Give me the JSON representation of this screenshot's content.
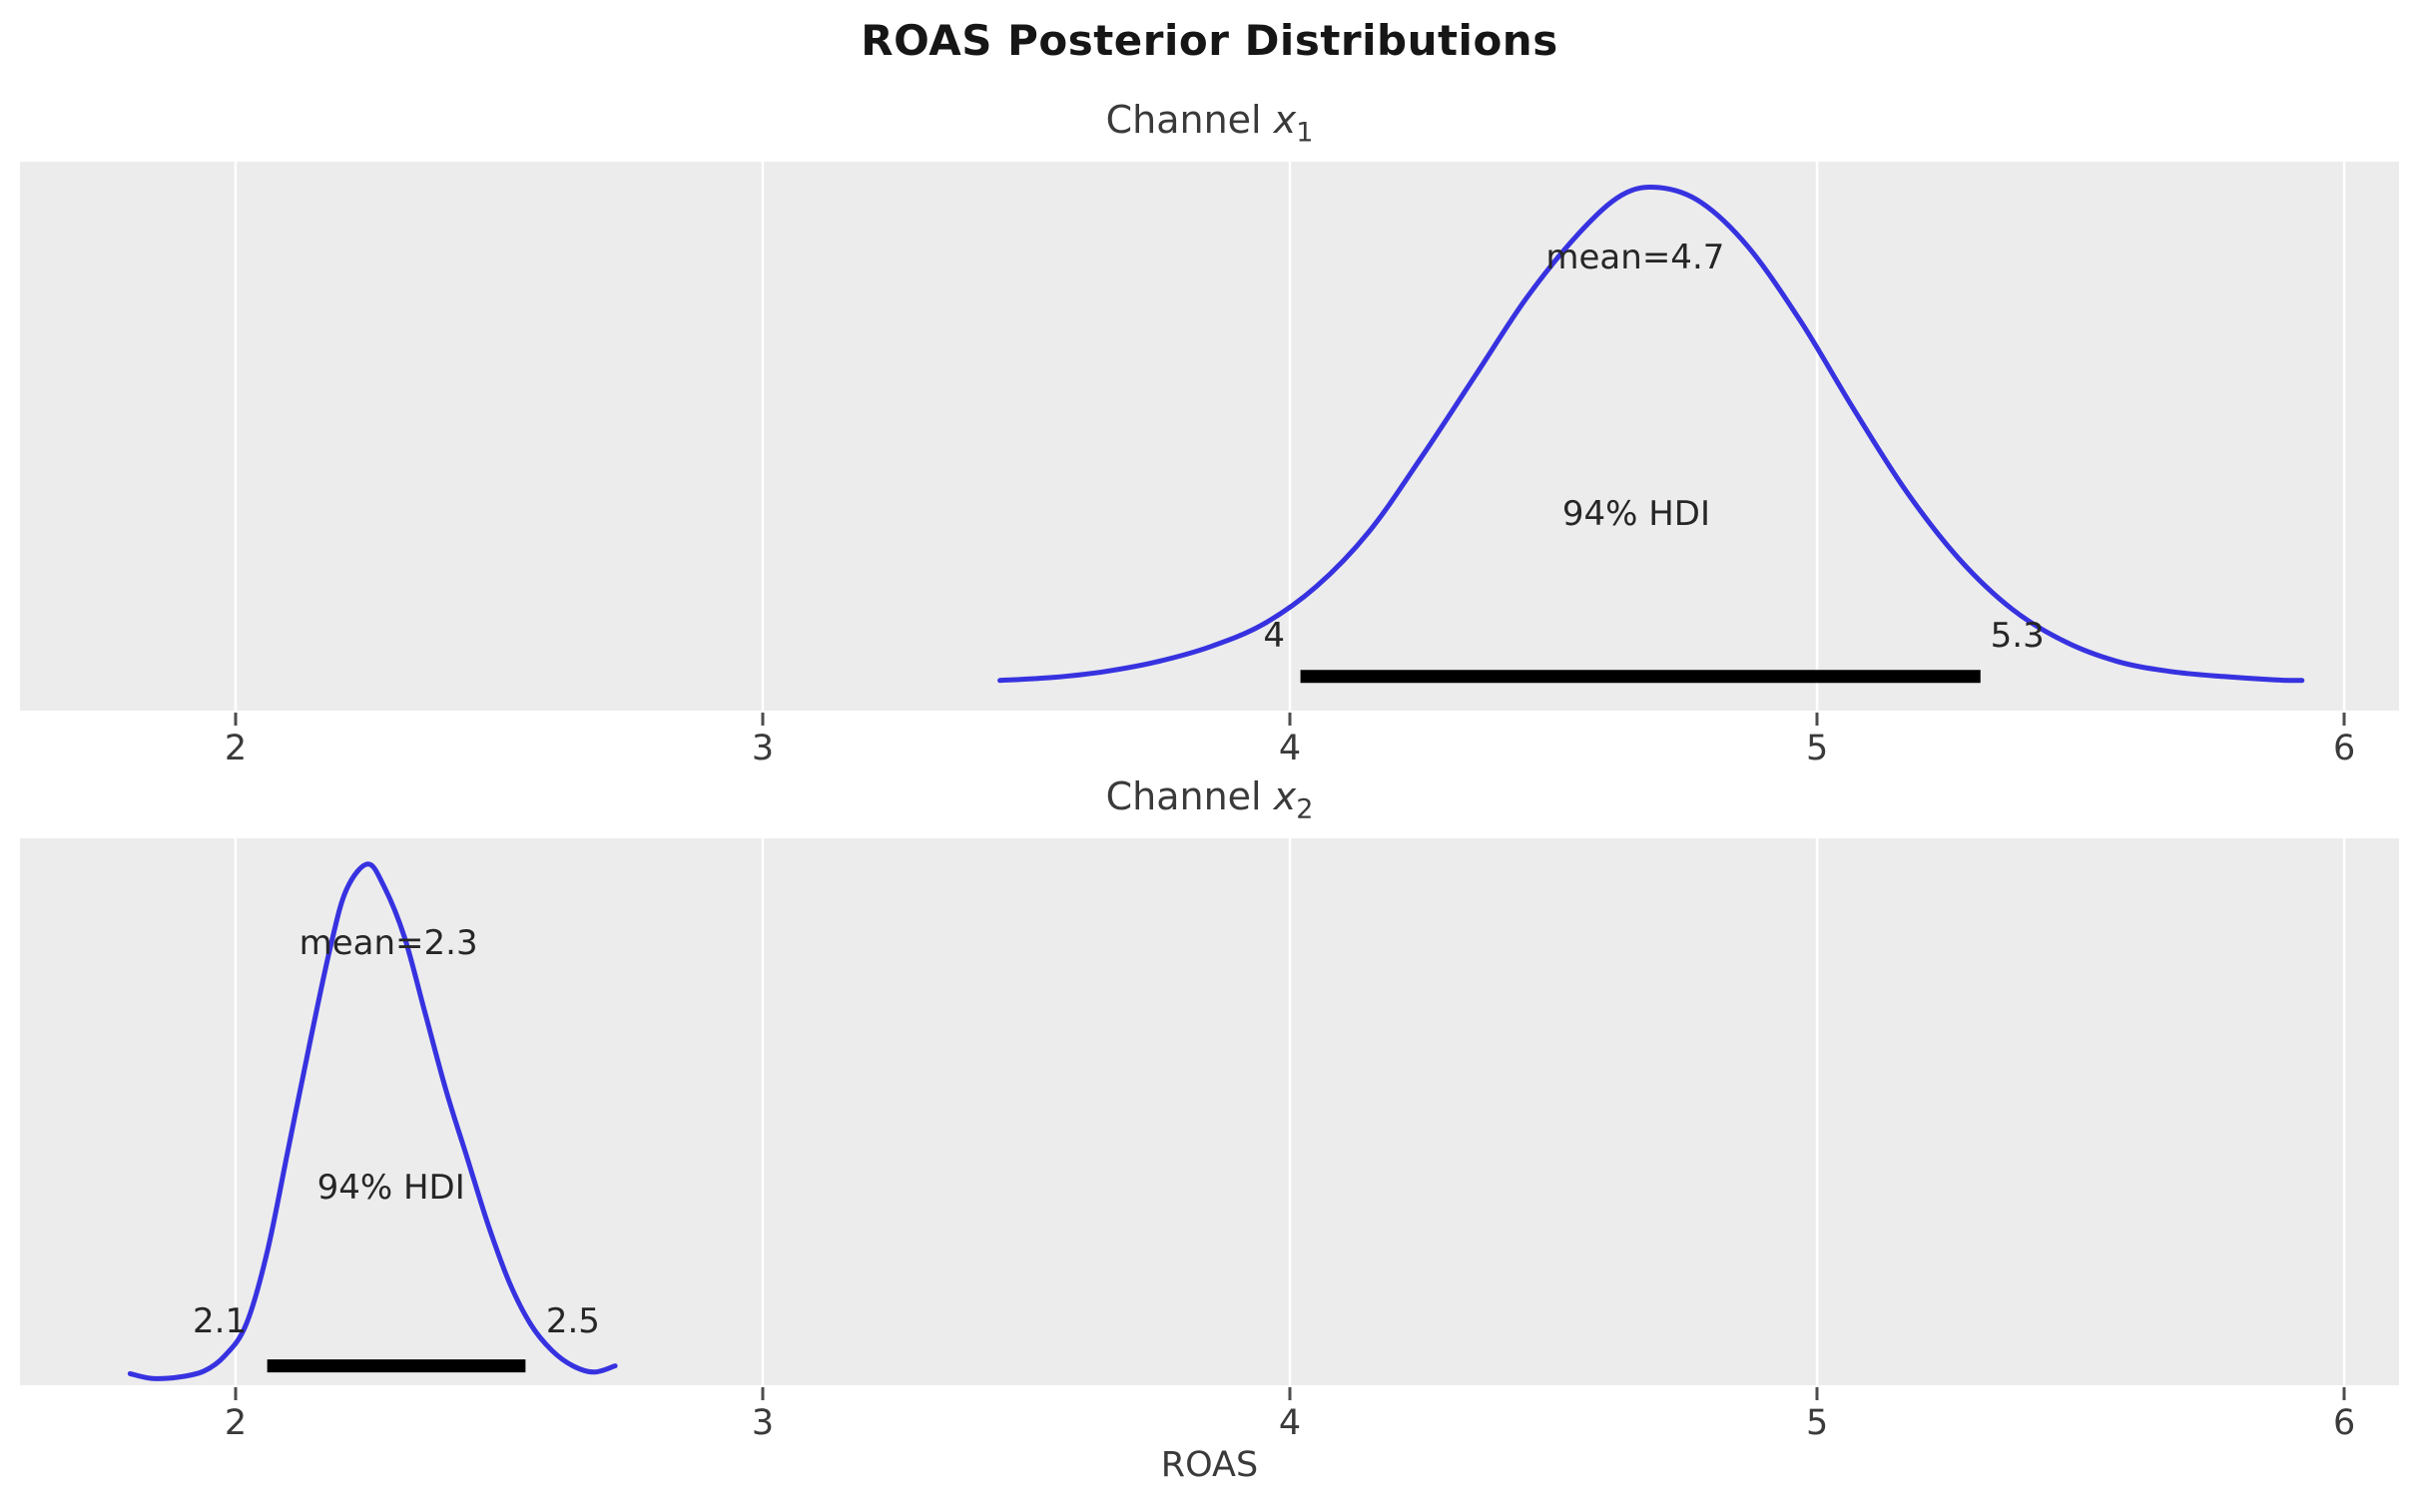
{
  "figure": {
    "title": "ROAS Posterior Distributions",
    "xlabel": "ROAS"
  },
  "colors": {
    "curve": "#3732e0",
    "hdi_bar": "#000000",
    "plot_bg": "#ececec",
    "grid": "#ffffff",
    "tick": "#4d4d4d",
    "text": "#262626"
  },
  "chart_data": [
    {
      "type": "line",
      "title": {
        "prefix": "Channel ",
        "var": "x",
        "sub": "1"
      },
      "ylabel": "",
      "mean": 4.7,
      "mean_label": "mean=4.7",
      "hdi_label": "94% HDI",
      "hdi": {
        "probability": 0.94,
        "lower": 4.0,
        "upper": 5.3,
        "lower_text": "4",
        "upper_text": "5.3",
        "bar_start": 4.02,
        "bar_end": 5.31
      },
      "xlim": [
        1.591,
        6.104
      ],
      "xticks": [
        2,
        3,
        4,
        5,
        6
      ],
      "grid": true,
      "legend": null,
      "curve": {
        "x": [
          3.45,
          3.55,
          3.65,
          3.75,
          3.85,
          3.95,
          4.05,
          4.15,
          4.25,
          4.35,
          4.45,
          4.55,
          4.63,
          4.7,
          4.78,
          4.87,
          4.97,
          5.07,
          5.17,
          5.27,
          5.37,
          5.47,
          5.57,
          5.67,
          5.77,
          5.87,
          5.92
        ],
        "density": [
          0.012,
          0.018,
          0.03,
          0.05,
          0.08,
          0.125,
          0.2,
          0.31,
          0.46,
          0.62,
          0.78,
          0.91,
          0.985,
          1.0,
          0.97,
          0.88,
          0.73,
          0.555,
          0.39,
          0.255,
          0.155,
          0.09,
          0.05,
          0.03,
          0.02,
          0.013,
          0.012
        ]
      },
      "annotations": {
        "mean_xy": [
          4.655,
          0.86
        ],
        "hdi_xy": [
          4.657,
          0.345
        ],
        "lower_xy": [
          3.97,
          0.102
        ],
        "upper_xy": [
          5.38,
          0.102
        ],
        "bar_y": 0.02
      }
    },
    {
      "type": "line",
      "title": {
        "prefix": "Channel ",
        "var": "x",
        "sub": "2"
      },
      "ylabel": "",
      "mean": 2.3,
      "mean_label": "mean=2.3",
      "hdi_label": "94% HDI",
      "hdi": {
        "probability": 0.94,
        "lower": 2.1,
        "upper": 2.5,
        "lower_text": "2.1",
        "upper_text": "2.5",
        "bar_start": 2.06,
        "bar_end": 2.55
      },
      "xlim": [
        1.591,
        6.104
      ],
      "xticks": [
        2,
        3,
        4,
        5,
        6
      ],
      "grid": true,
      "legend": null,
      "curve": {
        "x": [
          1.8,
          1.84,
          1.89,
          1.94,
          1.98,
          2.02,
          2.06,
          2.1,
          2.14,
          2.18,
          2.21,
          2.25,
          2.28,
          2.32,
          2.36,
          2.4,
          2.44,
          2.48,
          2.52,
          2.56,
          2.6,
          2.64,
          2.68,
          2.72
        ],
        "density": [
          0.015,
          0.006,
          0.008,
          0.02,
          0.05,
          0.11,
          0.25,
          0.45,
          0.65,
          0.84,
          0.95,
          1.0,
          0.96,
          0.86,
          0.71,
          0.56,
          0.43,
          0.3,
          0.19,
          0.11,
          0.06,
          0.03,
          0.018,
          0.03
        ]
      },
      "annotations": {
        "mean_xy": [
          2.29,
          0.848
        ],
        "hdi_xy": [
          2.295,
          0.375
        ],
        "lower_xy": [
          1.97,
          0.116
        ],
        "upper_xy": [
          2.64,
          0.116
        ],
        "bar_y": 0.03
      }
    }
  ]
}
